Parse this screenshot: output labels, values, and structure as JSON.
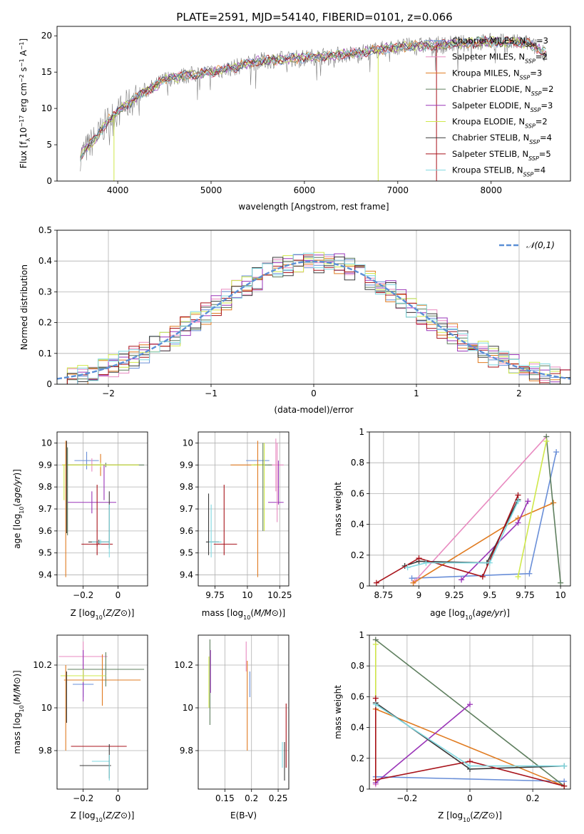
{
  "figure_title": "PLATE=2591, MJD=54140, FIBERID=0101, z=0.066",
  "colors": {
    "Chabrier MILES": "#6a8fd8",
    "Salpeter MILES": "#e88ac0",
    "Kroupa MILES": "#e07b20",
    "Chabrier ELODIE": "#5f7f5f",
    "Salpeter ELODIE": "#9a35b8",
    "Kroupa ELODIE": "#cfe84a",
    "Chabrier STELIB": "#3a3a3a",
    "Salpeter STELIB": "#a8131b",
    "Kroupa STELIB": "#7fd8e0",
    "spectrum": "#808080",
    "gaussian": "#5b8fd6"
  },
  "chart_data": [
    {
      "type": "line",
      "title": "PLATE=2591, MJD=54140, FIBERID=0101, z=0.066",
      "xlabel": "wavelength [Angstrom, rest frame]",
      "ylabel_parts": [
        "Flux [f",
        "λ",
        "10",
        "−17",
        " erg cm",
        "−2",
        " s",
        "−1",
        " A",
        "−1",
        "]"
      ],
      "xlim": [
        3350,
        8850
      ],
      "ylim": [
        0,
        21.3
      ],
      "xticks": [
        4000,
        5000,
        6000,
        7000,
        8000
      ],
      "yticks": [
        0,
        5,
        10,
        15,
        20
      ],
      "grid": false,
      "legend_position": "top-right",
      "legend": [
        {
          "label": "Chabrier MILES, N",
          "sub": "SSP",
          "suffix": "=3",
          "key": "Chabrier MILES"
        },
        {
          "label": "Salpeter MILES, N",
          "sub": "SSP",
          "suffix": "=2",
          "key": "Salpeter MILES"
        },
        {
          "label": "Kroupa MILES, N",
          "sub": "SSP",
          "suffix": "=3",
          "key": "Kroupa MILES"
        },
        {
          "label": "Chabrier ELODIE, N",
          "sub": "SSP",
          "suffix": "=2",
          "key": "Chabrier ELODIE"
        },
        {
          "label": "Salpeter ELODIE, N",
          "sub": "SSP",
          "suffix": "=3",
          "key": "Salpeter ELODIE"
        },
        {
          "label": "Kroupa ELODIE, N",
          "sub": "SSP",
          "suffix": "=2",
          "key": "Kroupa ELODIE"
        },
        {
          "label": "Chabrier STELIB, N",
          "sub": "SSP",
          "suffix": "=4",
          "key": "Chabrier STELIB"
        },
        {
          "label": "Salpeter STELIB, N",
          "sub": "SSP",
          "suffix": "=5",
          "key": "Salpeter STELIB"
        },
        {
          "label": "Kroupa STELIB, N",
          "sub": "SSP",
          "suffix": "=4",
          "key": "Kroupa STELIB"
        }
      ],
      "continuum": {
        "x": [
          3600,
          3700,
          3800,
          3900,
          4000,
          4100,
          4200,
          4300,
          4400,
          4500,
          4700,
          5000,
          5200,
          5500,
          6000,
          6500,
          7000,
          7500,
          8000,
          8400,
          8600
        ],
        "y": [
          3.5,
          5.0,
          6.5,
          8.5,
          9.5,
          10.5,
          11.5,
          12.5,
          13.0,
          14.0,
          14.5,
          15.0,
          15.5,
          16.5,
          17.0,
          17.5,
          18.5,
          18.8,
          19.2,
          19.0,
          17.5
        ]
      },
      "dips": [
        {
          "model": "Kroupa ELODIE",
          "x": 3960,
          "ymin": 0
        },
        {
          "model": "Kroupa ELODIE",
          "x": 6790,
          "ymin": 0
        },
        {
          "model": "Salpeter STELIB",
          "x": 7415,
          "ymin": 0
        }
      ]
    },
    {
      "type": "line",
      "subtype": "step_histogram",
      "xlabel": "(data-model)/error",
      "ylabel": "Normed distribution",
      "xlim": [
        -2.5,
        2.5
      ],
      "ylim": [
        0,
        0.5
      ],
      "xticks": [
        -2,
        -1,
        0,
        1,
        2
      ],
      "yticks": [
        0.0,
        0.1,
        0.2,
        0.3,
        0.4,
        0.5
      ],
      "grid": true,
      "legend_position": "top-right",
      "legend": [
        {
          "label": "𝒩(0,1)",
          "key": "gaussian",
          "style": "dashed"
        }
      ],
      "bin_width": 0.1,
      "bin_start": -2.5
    },
    {
      "type": "scatter",
      "subtype": "error_crosses",
      "xlabel": "Z [log10(Z/Z⊙)]",
      "ylabel": "age  [log10(age/yr)]",
      "xlim": [
        -0.35,
        0.17
      ],
      "ylim": [
        9.35,
        10.05
      ],
      "xticks": [
        -0.2,
        0.0
      ],
      "yticks": [
        9.4,
        9.5,
        9.6,
        9.7,
        9.8,
        9.9,
        10.0
      ],
      "grid": true,
      "points": [
        {
          "model": "Chabrier MILES",
          "x": -0.18,
          "xerr": 0.07,
          "y": 9.92,
          "yerr": 0.04
        },
        {
          "model": "Salpeter MILES",
          "x": -0.15,
          "xerr": 0.14,
          "y": 9.9,
          "yerr": 0.03
        },
        {
          "model": "Kroupa MILES",
          "x": -0.1,
          "xerr": 0.22,
          "y": 9.9,
          "yerr": 0.05
        },
        {
          "model": "Chabrier ELODIE",
          "x": -0.07,
          "xerr": 0.22,
          "y": 9.9,
          "yerr": 0.01
        },
        {
          "model": "Salpeter ELODIE",
          "x": -0.15,
          "xerr": 0.14,
          "y": 9.73,
          "yerr": 0.05
        },
        {
          "model": "Kroupa ELODIE",
          "x": -0.1,
          "xerr": 0.22,
          "y": 9.9,
          "yerr": 0.01
        },
        {
          "model": "Chabrier STELIB",
          "x": -0.11,
          "xerr": 0.06,
          "y": 9.55,
          "yerr": 0.01
        },
        {
          "model": "Salpeter STELIB",
          "x": -0.12,
          "xerr": 0.09,
          "y": 9.54,
          "yerr": 0.01
        },
        {
          "model": "Kroupa STELIB",
          "x": -0.1,
          "xerr": 0.05,
          "y": 9.55,
          "yerr": 0.01
        },
        {
          "model": "Kroupa MILES",
          "x": -0.3,
          "xerr": 0.0,
          "y": 9.7,
          "yerr": 0.31
        },
        {
          "model": "Chabrier STELIB",
          "x": -0.295,
          "xerr": 0.0,
          "y": 9.8,
          "yerr": 0.21
        },
        {
          "model": "Kroupa ELODIE",
          "x": -0.31,
          "xerr": 0.0,
          "y": 9.82,
          "yerr": 0.08
        },
        {
          "model": "Chabrier ELODIE",
          "x": -0.29,
          "xerr": 0.0,
          "y": 9.78,
          "yerr": 0.2
        },
        {
          "model": "Salpeter STELIB",
          "x": -0.12,
          "xerr": 0.0,
          "y": 9.65,
          "yerr": 0.16
        },
        {
          "model": "Chabrier STELIB",
          "x": -0.05,
          "xerr": 0.0,
          "y": 9.65,
          "yerr": 0.13
        },
        {
          "model": "Kroupa STELIB",
          "x": -0.05,
          "xerr": 0.0,
          "y": 9.6,
          "yerr": 0.12
        },
        {
          "model": "Salpeter ELODIE",
          "x": -0.08,
          "xerr": 0.0,
          "y": 9.82,
          "yerr": 0.08
        }
      ]
    },
    {
      "type": "scatter",
      "subtype": "error_crosses",
      "xlabel": "mass [log10(M/M⊙)]",
      "ylabel": "",
      "xlim": [
        9.62,
        10.32
      ],
      "ylim": [
        9.35,
        10.05
      ],
      "xticks": [
        9.75,
        10.0,
        10.25
      ],
      "yticks": [
        9.4,
        9.5,
        9.6,
        9.7,
        9.8,
        9.9,
        10.0
      ],
      "grid": true,
      "points": [
        {
          "model": "Chabrier MILES",
          "x": 10.08,
          "xerr": 0.09,
          "y": 9.92,
          "yerr": 0.0
        },
        {
          "model": "Salpeter MILES",
          "x": 10.22,
          "xerr": 0.06,
          "y": 9.9,
          "yerr": 0.12
        },
        {
          "model": "Kroupa MILES",
          "x": 10.0,
          "xerr": 0.13,
          "y": 9.9,
          "yerr": 0.0
        },
        {
          "model": "Chabrier ELODIE",
          "x": 10.12,
          "xerr": 0.07,
          "y": 9.9,
          "yerr": 0.0
        },
        {
          "model": "Salpeter ELODIE",
          "x": 10.22,
          "xerr": 0.06,
          "y": 9.73,
          "yerr": 0.0
        },
        {
          "model": "Kroupa ELODIE",
          "x": 10.08,
          "xerr": 0.05,
          "y": 9.9,
          "yerr": 0.0
        },
        {
          "model": "Chabrier STELIB",
          "x": 9.73,
          "xerr": 0.05,
          "y": 9.55,
          "yerr": 0.0
        },
        {
          "model": "Salpeter STELIB",
          "x": 9.83,
          "xerr": 0.09,
          "y": 9.54,
          "yerr": 0.0
        },
        {
          "model": "Kroupa STELIB",
          "x": 9.75,
          "xerr": 0.05,
          "y": 9.55,
          "yerr": 0.0
        },
        {
          "model": "Chabrier STELIB",
          "x": 9.7,
          "xerr": 0.0,
          "y": 9.63,
          "yerr": 0.14
        },
        {
          "model": "Kroupa STELIB",
          "x": 9.72,
          "xerr": 0.0,
          "y": 9.6,
          "yerr": 0.12
        },
        {
          "model": "Salpeter STELIB",
          "x": 9.82,
          "xerr": 0.0,
          "y": 9.65,
          "yerr": 0.16
        },
        {
          "model": "Kroupa MILES",
          "x": 10.08,
          "xerr": 0.0,
          "y": 9.7,
          "yerr": 0.31
        },
        {
          "model": "Chabrier ELODIE",
          "x": 10.12,
          "xerr": 0.0,
          "y": 9.8,
          "yerr": 0.2
        },
        {
          "model": "Kroupa ELODIE",
          "x": 10.13,
          "xerr": 0.0,
          "y": 9.8,
          "yerr": 0.2
        },
        {
          "model": "Salpeter MILES",
          "x": 10.23,
          "xerr": 0.0,
          "y": 9.82,
          "yerr": 0.18
        },
        {
          "model": "Salpeter ELODIE",
          "x": 10.24,
          "xerr": 0.0,
          "y": 9.82,
          "yerr": 0.1
        }
      ]
    },
    {
      "type": "line",
      "xlabel": "age  [log10(age/yr)]",
      "ylabel": "mass weight",
      "xlim": [
        8.65,
        10.07
      ],
      "ylim": [
        0.0,
        1.0
      ],
      "xticks": [
        8.75,
        9.0,
        9.25,
        9.5,
        9.75,
        10.0
      ],
      "yticks": [
        0.0,
        0.2,
        0.4,
        0.6,
        0.8,
        1.0
      ],
      "grid": true,
      "series": [
        {
          "model": "Chabrier MILES",
          "x": [
            8.95,
            9.78,
            9.97
          ],
          "y": [
            0.05,
            0.08,
            0.87
          ]
        },
        {
          "model": "Salpeter MILES",
          "x": [
            8.97,
            9.9
          ],
          "y": [
            0.03,
            0.97
          ]
        },
        {
          "model": "Kroupa MILES",
          "x": [
            8.96,
            9.7,
            9.95
          ],
          "y": [
            0.02,
            0.44,
            0.54
          ]
        },
        {
          "model": "Chabrier ELODIE",
          "x": [
            9.9,
            10.0
          ],
          "y": [
            0.97,
            0.02
          ]
        },
        {
          "model": "Salpeter ELODIE",
          "x": [
            9.3,
            9.7,
            9.77
          ],
          "y": [
            0.04,
            0.41,
            0.55
          ]
        },
        {
          "model": "Kroupa ELODIE",
          "x": [
            9.7,
            9.9
          ],
          "y": [
            0.06,
            0.94
          ]
        },
        {
          "model": "Chabrier STELIB",
          "x": [
            8.9,
            9.0,
            9.48,
            9.7
          ],
          "y": [
            0.13,
            0.16,
            0.15,
            0.56
          ]
        },
        {
          "model": "Salpeter STELIB",
          "x": [
            8.7,
            9.0,
            9.45,
            9.7
          ],
          "y": [
            0.02,
            0.18,
            0.06,
            0.59
          ]
        },
        {
          "model": "Kroupa STELIB",
          "x": [
            8.92,
            9.05,
            9.5,
            9.7
          ],
          "y": [
            0.12,
            0.15,
            0.15,
            0.55
          ]
        }
      ]
    },
    {
      "type": "scatter",
      "subtype": "error_crosses",
      "xlabel": "Z [log10(Z/Z⊙)]",
      "ylabel": "mass [log10(M/M⊙)]",
      "xlim": [
        -0.35,
        0.17
      ],
      "ylim": [
        9.62,
        10.34
      ],
      "xticks": [
        -0.2,
        0.0
      ],
      "yticks": [
        9.8,
        10.0,
        10.2
      ],
      "grid": true,
      "points": [
        {
          "model": "Chabrier MILES",
          "x": -0.2,
          "xerr": 0.06,
          "y": 10.11,
          "yerr": 0.06
        },
        {
          "model": "Salpeter MILES",
          "x": -0.2,
          "xerr": 0.14,
          "y": 10.24,
          "yerr": 0.07
        },
        {
          "model": "Kroupa MILES",
          "x": -0.09,
          "xerr": 0.22,
          "y": 10.13,
          "yerr": 0.12
        },
        {
          "model": "Chabrier ELODIE",
          "x": -0.07,
          "xerr": 0.22,
          "y": 10.18,
          "yerr": 0.08
        },
        {
          "model": "Salpeter ELODIE",
          "x": -0.2,
          "xerr": 0.1,
          "y": 10.15,
          "yerr": 0.12
        },
        {
          "model": "Kroupa ELODIE",
          "x": -0.2,
          "xerr": 0.13,
          "y": 10.15,
          "yerr": 0.03
        },
        {
          "model": "Chabrier STELIB",
          "x": -0.13,
          "xerr": 0.09,
          "y": 9.73,
          "yerr": 0.0
        },
        {
          "model": "Salpeter STELIB",
          "x": -0.11,
          "xerr": 0.16,
          "y": 9.82,
          "yerr": 0.0
        },
        {
          "model": "Kroupa STELIB",
          "x": -0.1,
          "xerr": 0.05,
          "y": 9.75,
          "yerr": 0.0
        },
        {
          "model": "Kroupa MILES",
          "x": -0.3,
          "xerr": 0.0,
          "y": 10.0,
          "yerr": 0.2
        },
        {
          "model": "Chabrier STELIB",
          "x": -0.295,
          "xerr": 0.0,
          "y": 10.05,
          "yerr": 0.12
        },
        {
          "model": "Chabrier STELIB",
          "x": -0.05,
          "xerr": 0.0,
          "y": 9.75,
          "yerr": 0.08
        },
        {
          "model": "Kroupa STELIB",
          "x": -0.05,
          "xerr": 0.0,
          "y": 9.72,
          "yerr": 0.06
        }
      ]
    },
    {
      "type": "scatter",
      "subtype": "error_bars",
      "xlabel": "E(B-V)",
      "ylabel": "",
      "xlim": [
        0.1,
        0.27
      ],
      "ylim": [
        9.62,
        10.34
      ],
      "xticks": [
        0.15,
        0.2,
        0.25
      ],
      "yticks": [
        9.8,
        10.0,
        10.2
      ],
      "grid": true,
      "points": [
        {
          "model": "Chabrier MILES",
          "x": 0.197,
          "y": 10.11,
          "yerr": 0.06
        },
        {
          "model": "Salpeter MILES",
          "x": 0.19,
          "y": 10.24,
          "yerr": 0.07
        },
        {
          "model": "Kroupa MILES",
          "x": 0.192,
          "y": 10.01,
          "yerr": 0.21
        },
        {
          "model": "Chabrier ELODIE",
          "x": 0.122,
          "y": 10.12,
          "yerr": 0.2
        },
        {
          "model": "Salpeter ELODIE",
          "x": 0.123,
          "y": 10.17,
          "yerr": 0.1
        },
        {
          "model": "Kroupa ELODIE",
          "x": 0.12,
          "y": 10.12,
          "yerr": 0.12
        },
        {
          "model": "Chabrier STELIB",
          "x": 0.262,
          "y": 9.75,
          "yerr": 0.09
        },
        {
          "model": "Salpeter STELIB",
          "x": 0.265,
          "y": 9.87,
          "yerr": 0.15
        },
        {
          "model": "Kroupa STELIB",
          "x": 0.258,
          "y": 9.78,
          "yerr": 0.06
        }
      ]
    },
    {
      "type": "line",
      "xlabel": "Z [log10(Z/Z⊙)]",
      "ylabel": "mass weight",
      "xlim": [
        -0.32,
        0.32
      ],
      "ylim": [
        0.0,
        1.0
      ],
      "xticks": [
        -0.2,
        0.0,
        0.2
      ],
      "yticks": [
        0.0,
        0.2,
        0.4,
        0.6,
        0.8,
        1.0
      ],
      "grid": true,
      "series": [
        {
          "model": "Chabrier MILES",
          "x": [
            -0.3,
            0.3
          ],
          "y": [
            0.08,
            0.05
          ]
        },
        {
          "model": "Salpeter MILES",
          "x": [
            -0.3,
            -0.3
          ],
          "y": [
            0.03,
            0.97
          ]
        },
        {
          "model": "Kroupa MILES",
          "x": [
            -0.3,
            0.3
          ],
          "y": [
            0.52,
            0.02
          ]
        },
        {
          "model": "Chabrier ELODIE",
          "x": [
            -0.3,
            0.3
          ],
          "y": [
            0.97,
            0.02
          ]
        },
        {
          "model": "Salpeter ELODIE",
          "x": [
            -0.3,
            0.0
          ],
          "y": [
            0.04,
            0.55
          ]
        },
        {
          "model": "Kroupa ELODIE",
          "x": [
            -0.3,
            -0.3
          ],
          "y": [
            0.06,
            0.94
          ]
        },
        {
          "model": "Chabrier STELIB",
          "x": [
            -0.3,
            0.0,
            0.3
          ],
          "y": [
            0.56,
            0.13,
            0.15
          ]
        },
        {
          "model": "Salpeter STELIB",
          "x": [
            -0.3,
            -0.3,
            0.0,
            0.3
          ],
          "y": [
            0.59,
            0.06,
            0.18,
            0.02
          ]
        },
        {
          "model": "Kroupa STELIB",
          "x": [
            -0.3,
            0.0,
            0.3
          ],
          "y": [
            0.55,
            0.15,
            0.15
          ]
        }
      ]
    }
  ]
}
